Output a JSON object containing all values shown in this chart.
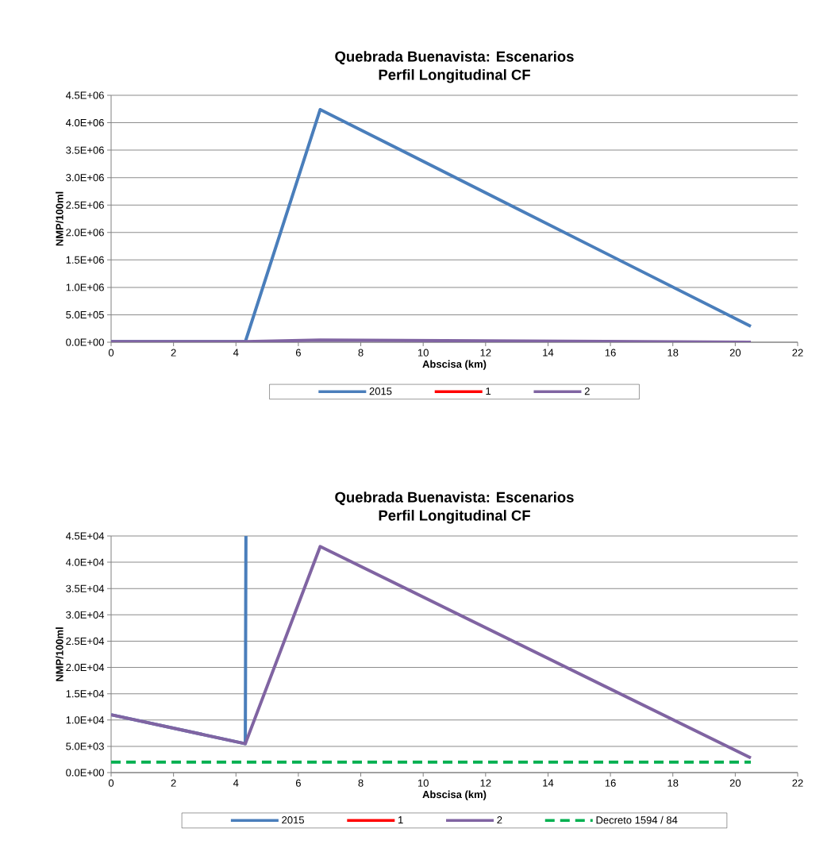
{
  "chart_data": [
    {
      "type": "line",
      "title": "Quebrada Buenavista: Escenarios",
      "subtitle": "Perfil Longitudinal CF",
      "xlabel": "Abscisa (km)",
      "ylabel": "NMP/100ml",
      "xlim": [
        0,
        22
      ],
      "xticks": [
        0,
        2,
        4,
        6,
        8,
        10,
        12,
        14,
        16,
        18,
        20,
        22
      ],
      "ylim": [
        0,
        4500000
      ],
      "yticks": [
        {
          "value": 0,
          "label": "0.0E+00"
        },
        {
          "value": 500000,
          "label": "5.0E+05"
        },
        {
          "value": 1000000,
          "label": "1.0E+06"
        },
        {
          "value": 1500000,
          "label": "1.5E+06"
        },
        {
          "value": 2000000,
          "label": "2.0E+06"
        },
        {
          "value": 2500000,
          "label": "2.5E+06"
        },
        {
          "value": 3000000,
          "label": "3.0E+06"
        },
        {
          "value": 3500000,
          "label": "3.5E+06"
        },
        {
          "value": 4000000,
          "label": "4.0E+06"
        },
        {
          "value": 4500000,
          "label": "4.5E+06"
        }
      ],
      "grid": "y",
      "legend": "bottom",
      "series": [
        {
          "name": "2015",
          "color": "#4a7ebb",
          "x": [
            0,
            4.3,
            6.7,
            20.5
          ],
          "values": [
            10000,
            10000,
            4240000,
            290000
          ]
        },
        {
          "name": "1",
          "color": "#ff0000",
          "values": [
            null,
            null,
            null,
            null
          ]
        },
        {
          "name": "2",
          "color": "#8064a2",
          "x": [
            0,
            4.3,
            6.7,
            20.5
          ],
          "values": [
            10000,
            10000,
            40000,
            0
          ]
        }
      ]
    },
    {
      "type": "line",
      "title": "Quebrada Buenavista: Escenarios",
      "subtitle": "Perfil Longitudinal CF",
      "xlabel": "Abscisa (km)",
      "ylabel": "NMP/100ml",
      "xlim": [
        0,
        22
      ],
      "xticks": [
        0,
        2,
        4,
        6,
        8,
        10,
        12,
        14,
        16,
        18,
        20,
        22
      ],
      "ylim": [
        0,
        45000
      ],
      "yticks": [
        {
          "value": 0,
          "label": "0.0E+00"
        },
        {
          "value": 5000,
          "label": "5.0E+03"
        },
        {
          "value": 10000,
          "label": "1.0E+04"
        },
        {
          "value": 15000,
          "label": "1.5E+04"
        },
        {
          "value": 20000,
          "label": "2.0E+04"
        },
        {
          "value": 25000,
          "label": "2.5E+04"
        },
        {
          "value": 30000,
          "label": "3.0E+04"
        },
        {
          "value": 35000,
          "label": "3.5E+04"
        },
        {
          "value": 40000,
          "label": "4.0E+04"
        },
        {
          "value": 45000,
          "label": "4.5E+04"
        }
      ],
      "grid": "y",
      "legend": "bottom",
      "series": [
        {
          "name": "2015",
          "color": "#4a7ebb",
          "x": [
            0,
            4.3,
            4.32
          ],
          "values": [
            11000,
            5500,
            45000
          ]
        },
        {
          "name": "1",
          "color": "#ff0000",
          "values": [
            null,
            null,
            null,
            null
          ]
        },
        {
          "name": "2",
          "color": "#8064a2",
          "x": [
            0,
            4.3,
            6.7,
            20.5
          ],
          "values": [
            11000,
            5500,
            43000,
            2800
          ]
        },
        {
          "name": "Decreto 1594 / 84",
          "color": "#00b050",
          "line_style": "dashed",
          "x": [
            0,
            20.5
          ],
          "values": [
            2000,
            2000
          ]
        }
      ]
    }
  ]
}
